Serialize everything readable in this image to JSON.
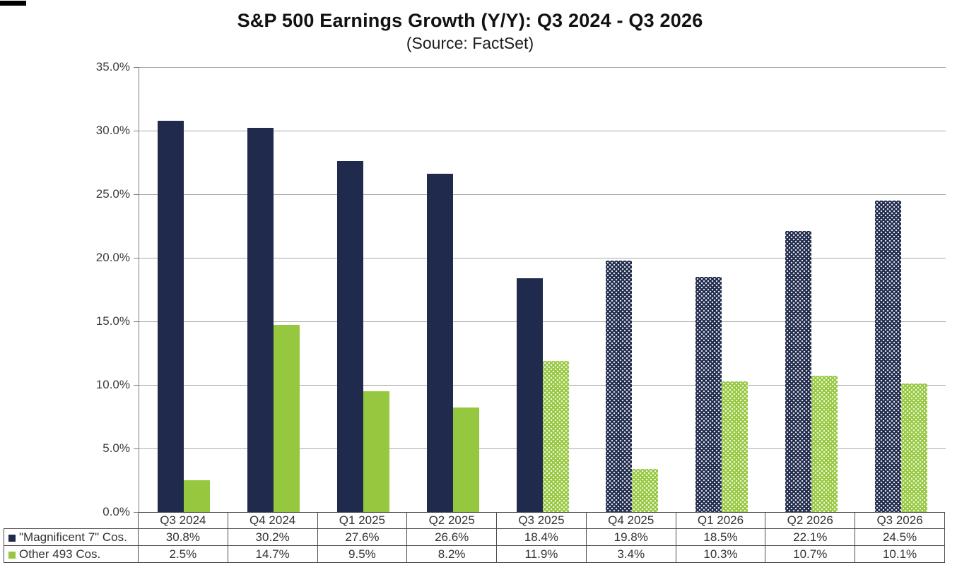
{
  "chart_data": {
    "type": "bar",
    "title": "S&P 500 Earnings Growth (Y/Y): Q3 2024 - Q3 2026",
    "subtitle": "(Source: FactSet)",
    "categories": [
      "Q3 2024",
      "Q4 2024",
      "Q1 2025",
      "Q2 2025",
      "Q3 2025",
      "Q4 2025",
      "Q1 2026",
      "Q2 2026",
      "Q3 2026"
    ],
    "series": [
      {
        "key": "magnificent-7",
        "name": "\"Magnificent 7\" Cos.",
        "color": "#1F2A4C",
        "values": [
          30.8,
          30.2,
          27.6,
          26.6,
          18.4,
          19.8,
          18.5,
          22.1,
          24.5
        ],
        "labels": [
          "30.8%",
          "30.2%",
          "27.6%",
          "26.6%",
          "18.4%",
          "19.8%",
          "18.5%",
          "22.1%",
          "24.5%"
        ],
        "patterned": [
          false,
          false,
          false,
          false,
          false,
          true,
          true,
          true,
          true
        ]
      },
      {
        "key": "other-493",
        "name": "Other 493 Cos.",
        "color": "#96C83F",
        "values": [
          2.5,
          14.7,
          9.5,
          8.2,
          11.9,
          3.4,
          10.3,
          10.7,
          10.1
        ],
        "labels": [
          "2.5%",
          "14.7%",
          "9.5%",
          "8.2%",
          "11.9%",
          "3.4%",
          "10.3%",
          "10.7%",
          "10.1%"
        ],
        "patterned": [
          false,
          false,
          false,
          false,
          true,
          true,
          true,
          true,
          true
        ]
      }
    ],
    "y_axis": {
      "min": 0,
      "max": 35,
      "step": 5,
      "tick_labels": [
        "0.0%",
        "5.0%",
        "10.0%",
        "15.0%",
        "20.0%",
        "25.0%",
        "30.0%",
        "35.0%"
      ]
    },
    "grid": true,
    "legend_position": "table-left"
  },
  "colors": {
    "navy": "#1F2A4C",
    "green": "#96C83F",
    "gridline": "#A8A8A8",
    "axis": "#7F7F7F",
    "table_border": "#4D4D4D",
    "text": "#333333"
  }
}
